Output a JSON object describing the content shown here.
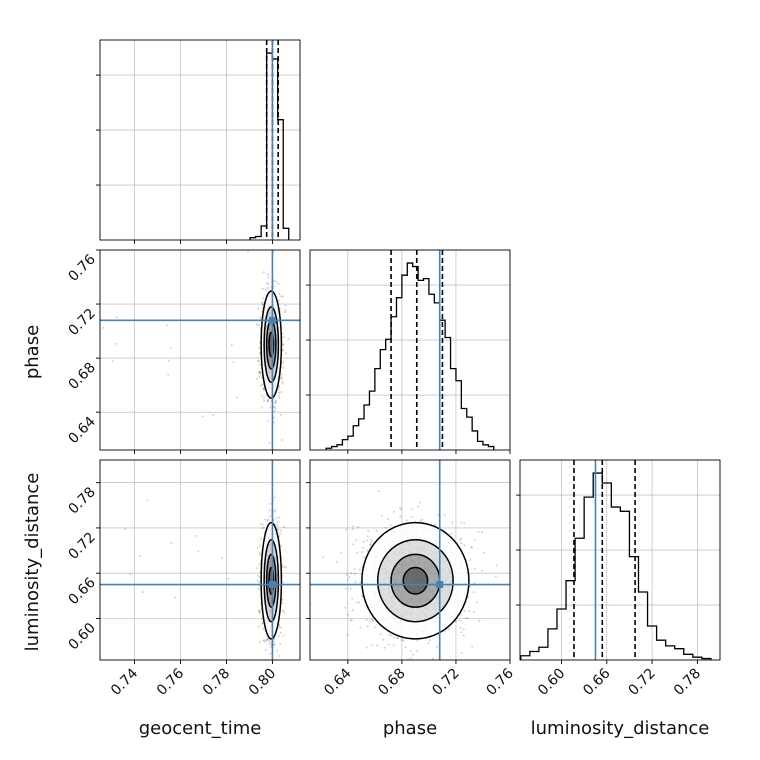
{
  "chart_data": {
    "type": "corner",
    "parameters": [
      "geocent_time",
      "phase",
      "luminosity_distance"
    ],
    "truths": {
      "geocent_time": 0.8,
      "phase": 0.708,
      "luminosity_distance": 0.645
    },
    "axis_ranges": {
      "geocent_time": [
        0.725,
        0.812
      ],
      "phase": [
        0.612,
        0.76
      ],
      "luminosity_distance": [
        0.545,
        0.81
      ]
    },
    "axis_ticks": {
      "geocent_time": [
        "0.74",
        "0.76",
        "0.78",
        "0.80"
      ],
      "phase": [
        "0.64",
        "0.68",
        "0.72",
        "0.76"
      ],
      "luminosity_distance": [
        "0.60",
        "0.66",
        "0.72",
        "0.78"
      ]
    },
    "histograms": [
      {
        "parameter": "geocent_time",
        "bin_edges": [
          0.7903,
          0.7927,
          0.7951,
          0.7975,
          0.7999,
          0.8023,
          0.8047,
          0.8071
        ],
        "counts": [
          2,
          3,
          12,
          160,
          155,
          103,
          10
        ],
        "quantiles": [
          0.7975,
          0.8,
          0.8025
        ]
      },
      {
        "parameter": "phase",
        "bin_edges": [
          0.624,
          0.628,
          0.632,
          0.636,
          0.64,
          0.644,
          0.648,
          0.652,
          0.656,
          0.66,
          0.664,
          0.668,
          0.672,
          0.676,
          0.68,
          0.684,
          0.688,
          0.692,
          0.696,
          0.7,
          0.704,
          0.708,
          0.712,
          0.716,
          0.72,
          0.724,
          0.728,
          0.732,
          0.736,
          0.74,
          0.744,
          0.748
        ],
        "counts": [
          1,
          2,
          3,
          6,
          8,
          14,
          18,
          26,
          34,
          47,
          58,
          64,
          77,
          88,
          101,
          108,
          106,
          98,
          99,
          90,
          85,
          75,
          65,
          47,
          40,
          24,
          19,
          11,
          5,
          3,
          2
        ],
        "quantiles": [
          0.672,
          0.691,
          0.71
        ]
      },
      {
        "parameter": "luminosity_distance",
        "bin_edges": [
          0.546,
          0.558,
          0.57,
          0.582,
          0.594,
          0.606,
          0.618,
          0.63,
          0.642,
          0.654,
          0.666,
          0.678,
          0.69,
          0.702,
          0.714,
          0.726,
          0.738,
          0.75,
          0.762,
          0.774,
          0.786,
          0.798
        ],
        "counts": [
          3,
          6,
          9,
          22,
          36,
          56,
          86,
          115,
          132,
          125,
          108,
          105,
          73,
          48,
          24,
          14,
          10,
          8,
          4,
          2,
          1
        ],
        "quantiles": [
          0.6165,
          0.654,
          0.6975
        ]
      }
    ],
    "posterior_2d": [
      {
        "x": "geocent_time",
        "y": "phase",
        "mean": [
          0.7995,
          0.69
        ],
        "std": [
          0.002,
          0.018
        ]
      },
      {
        "x": "geocent_time",
        "y": "luminosity_distance",
        "mean": [
          0.7995,
          0.65
        ],
        "std": [
          0.002,
          0.035
        ]
      },
      {
        "x": "phase",
        "y": "luminosity_distance",
        "mean": [
          0.69,
          0.65
        ],
        "std": [
          0.018,
          0.035
        ]
      }
    ]
  },
  "colors": {
    "truth": "#4682b4",
    "line": "#000000",
    "grid": "#b0b0b0",
    "point": "#000000"
  }
}
